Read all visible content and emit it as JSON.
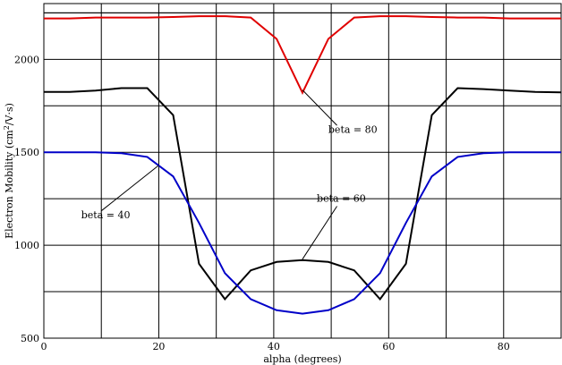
{
  "chart_data": {
    "type": "line",
    "title": "",
    "xlabel": "alpha (degrees)",
    "ylabel": "Electron Mobility (cm²/V·s)",
    "ylabel_parts": {
      "pre": "Electron Mobility (cm",
      "sup": "2",
      "post": "/V·s)"
    },
    "xlim": [
      0,
      90
    ],
    "ylim": [
      500,
      2300
    ],
    "x_ticks": [
      0,
      20,
      40,
      60,
      80
    ],
    "y_ticks": [
      500,
      1000,
      1500,
      2000
    ],
    "grid": true,
    "series": [
      {
        "name": "beta = 80",
        "color": "#e00000",
        "x": [
          0,
          4.5,
          9,
          13.5,
          18,
          22.5,
          27,
          31.5,
          36,
          40.5,
          45,
          49.5,
          54,
          58.5,
          63,
          67.5,
          72,
          76.5,
          81,
          85.5,
          90
        ],
        "y": [
          2220,
          2220,
          2225,
          2225,
          2225,
          2228,
          2232,
          2232,
          2225,
          2110,
          1820,
          2110,
          2225,
          2232,
          2232,
          2228,
          2225,
          2225,
          2220,
          2220,
          2220
        ]
      },
      {
        "name": "beta = 60",
        "color": "#000000",
        "x": [
          0,
          4.5,
          9,
          13.5,
          18,
          22.5,
          27,
          31.5,
          36,
          40.5,
          45,
          49.5,
          54,
          58.5,
          63,
          67.5,
          72,
          76.5,
          81,
          85.5,
          90
        ],
        "y": [
          1825,
          1825,
          1832,
          1845,
          1845,
          1700,
          900,
          710,
          865,
          910,
          920,
          910,
          865,
          710,
          900,
          1700,
          1845,
          1840,
          1832,
          1825,
          1822
        ]
      },
      {
        "name": "beta = 40",
        "color": "#0000c8",
        "x": [
          0,
          4.5,
          9,
          13.5,
          18,
          22.5,
          27,
          31.5,
          36,
          40.5,
          45,
          49.5,
          54,
          58.5,
          63,
          67.5,
          72,
          76.5,
          81,
          85.5,
          90
        ],
        "y": [
          1500,
          1500,
          1500,
          1495,
          1475,
          1370,
          1120,
          850,
          710,
          650,
          632,
          650,
          710,
          850,
          1120,
          1370,
          1475,
          1495,
          1500,
          1500,
          1500
        ]
      }
    ],
    "annotations": [
      {
        "label": "beta = 80",
        "text_x": 49.5,
        "text_y": 1605,
        "arrow_from": [
          51,
          1645
        ],
        "arrow_to": [
          45,
          1835
        ]
      },
      {
        "label": "beta = 60",
        "text_x": 47.5,
        "text_y": 1235,
        "arrow_from": [
          51,
          1210
        ],
        "arrow_to": [
          45,
          925
        ]
      },
      {
        "label": "beta = 40",
        "text_x": 6.5,
        "text_y": 1145,
        "arrow_from": [
          10,
          1185
        ],
        "arrow_to": [
          20,
          1430
        ]
      }
    ]
  }
}
